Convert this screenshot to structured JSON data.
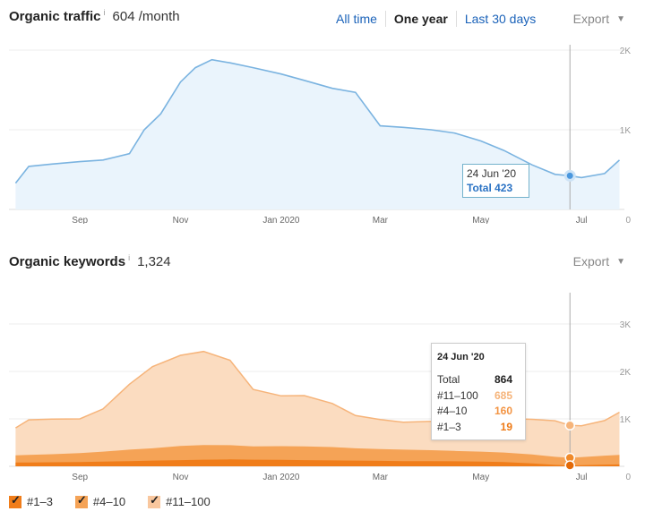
{
  "traffic": {
    "title": "Organic traffic",
    "info": "i",
    "value": "604 /month",
    "ranges": [
      {
        "label": "All time",
        "active": false
      },
      {
        "label": "One year",
        "active": true
      },
      {
        "label": "Last 30 days",
        "active": false
      }
    ],
    "export_label": "Export",
    "tooltip": {
      "date": "24 Jun '20",
      "total": "Total 423"
    },
    "color": "#7ab3e0"
  },
  "keywords": {
    "title": "Organic keywords",
    "info": "i",
    "value": "1,324",
    "export_label": "Export",
    "tooltip": {
      "date": "24 Jun '20",
      "rows": [
        {
          "label": "Total",
          "value": "864"
        },
        {
          "label": "#11–100",
          "value": "685"
        },
        {
          "label": "#4–10",
          "value": "160"
        },
        {
          "label": "#1–3",
          "value": "19"
        }
      ]
    }
  },
  "legend": [
    {
      "label": "#1–3",
      "color": "#f07d1a",
      "checked": true
    },
    {
      "label": "#4–10",
      "color": "#f5a356",
      "checked": true
    },
    {
      "label": "#11–100",
      "color": "#f9c79e",
      "checked": true
    }
  ],
  "colors": {
    "traffic_line": "#7ab3e0",
    "traffic_fill": "#eaf4fc",
    "kw_top3": "#f07d1a",
    "kw_4_10": "#f5a356",
    "kw_11_100": "#fbdcc0",
    "kw_11_100_line": "#f6b47a",
    "link": "#1a62b9"
  },
  "chart_data": [
    {
      "type": "area",
      "title": "Organic traffic",
      "x_tick_labels": [
        "Sep",
        "Nov",
        "Jan 2020",
        "Mar",
        "May",
        "Jul"
      ],
      "y_tick_labels": [
        "2K",
        "1K",
        "0"
      ],
      "ylim": [
        0,
        2000
      ],
      "x": [
        "2019-07-24",
        "2019-08-01",
        "2019-08-15",
        "2019-09-01",
        "2019-09-15",
        "2019-10-01",
        "2019-10-10",
        "2019-10-20",
        "2019-11-01",
        "2019-11-10",
        "2019-11-20",
        "2019-12-01",
        "2019-12-15",
        "2020-01-01",
        "2020-01-15",
        "2020-02-01",
        "2020-02-15",
        "2020-03-01",
        "2020-03-15",
        "2020-04-01",
        "2020-04-15",
        "2020-05-01",
        "2020-05-15",
        "2020-06-01",
        "2020-06-15",
        "2020-06-24",
        "2020-07-01",
        "2020-07-15",
        "2020-07-24"
      ],
      "series": [
        {
          "values": [
            330,
            540,
            570,
            600,
            620,
            700,
            1000,
            1200,
            1600,
            1780,
            1880,
            1840,
            1780,
            1700,
            1620,
            1520,
            1470,
            1050,
            1030,
            1000,
            960,
            860,
            740,
            560,
            440,
            423,
            400,
            450,
            620
          ]
        }
      ]
    },
    {
      "type": "area",
      "title": "Organic keywords",
      "x_tick_labels": [
        "Sep",
        "Nov",
        "Jan 2020",
        "Mar",
        "May",
        "Jul"
      ],
      "y_tick_labels": [
        "3K",
        "2K",
        "1K",
        "0"
      ],
      "ylim": [
        0,
        3000
      ],
      "x": [
        "2019-07-24",
        "2019-08-01",
        "2019-08-15",
        "2019-09-01",
        "2019-09-15",
        "2019-10-01",
        "2019-10-15",
        "2019-11-01",
        "2019-11-15",
        "2019-12-01",
        "2019-12-15",
        "2020-01-01",
        "2020-01-15",
        "2020-02-01",
        "2020-02-15",
        "2020-03-01",
        "2020-03-15",
        "2020-04-01",
        "2020-04-15",
        "2020-05-01",
        "2020-05-15",
        "2020-06-01",
        "2020-06-15",
        "2020-06-24",
        "2020-07-01",
        "2020-07-15",
        "2020-07-24"
      ],
      "series": [
        {
          "name": "#1–3",
          "values": [
            80,
            80,
            85,
            90,
            100,
            110,
            120,
            130,
            140,
            145,
            140,
            135,
            130,
            125,
            120,
            115,
            110,
            110,
            105,
            100,
            90,
            60,
            30,
            19,
            25,
            35,
            40
          ]
        },
        {
          "name": "#4–10",
          "values": [
            150,
            160,
            170,
            190,
            210,
            240,
            260,
            300,
            310,
            300,
            280,
            290,
            290,
            280,
            260,
            250,
            240,
            230,
            220,
            210,
            200,
            190,
            170,
            160,
            170,
            190,
            200
          ]
        },
        {
          "name": "#11–100",
          "values": [
            580,
            740,
            740,
            720,
            900,
            1380,
            1720,
            1910,
            1970,
            1790,
            1200,
            1060,
            1070,
            920,
            690,
            620,
            580,
            610,
            680,
            690,
            720,
            740,
            760,
            685,
            660,
            740,
            900
          ]
        }
      ]
    }
  ]
}
